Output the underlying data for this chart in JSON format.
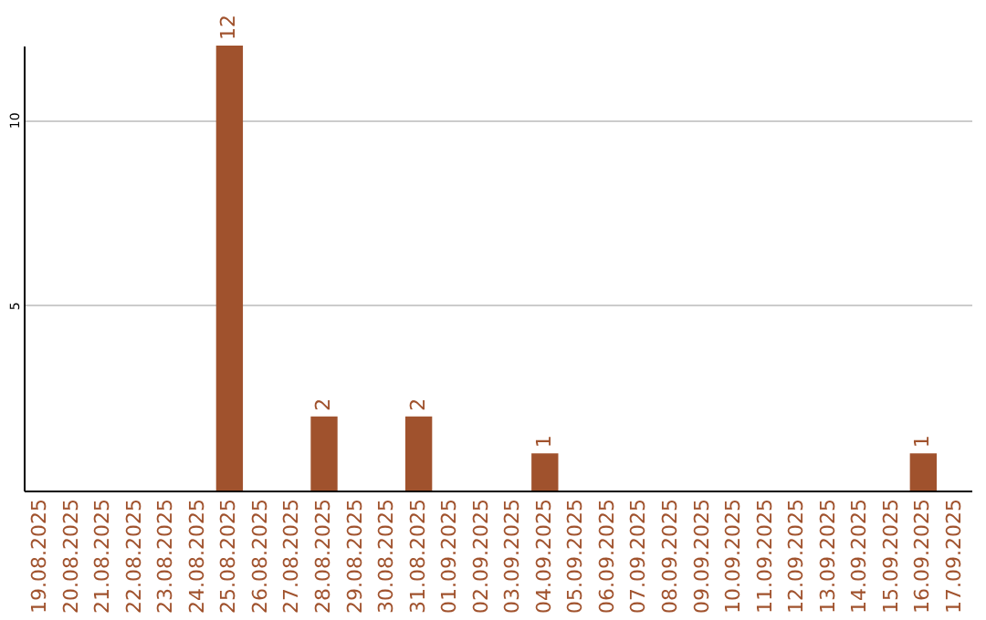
{
  "chart_data": {
    "type": "bar",
    "categories": [
      "19.08.2025",
      "20.08.2025",
      "21.08.2025",
      "22.08.2025",
      "23.08.2025",
      "24.08.2025",
      "25.08.2025",
      "26.08.2025",
      "27.08.2025",
      "28.08.2025",
      "29.08.2025",
      "30.08.2025",
      "31.08.2025",
      "01.09.2025",
      "02.09.2025",
      "03.09.2025",
      "04.09.2025",
      "05.09.2025",
      "06.09.2025",
      "07.09.2025",
      "08.09.2025",
      "09.09.2025",
      "10.09.2025",
      "11.09.2025",
      "12.09.2025",
      "13.09.2025",
      "14.09.2025",
      "15.09.2025",
      "16.09.2025",
      "17.09.2025"
    ],
    "values": [
      0,
      0,
      0,
      0,
      0,
      0,
      12,
      0,
      0,
      2,
      0,
      0,
      2,
      0,
      0,
      0,
      1,
      0,
      0,
      0,
      0,
      0,
      0,
      0,
      0,
      0,
      0,
      0,
      1,
      0
    ],
    "value_labels": [
      null,
      null,
      null,
      null,
      null,
      null,
      "12",
      null,
      null,
      "2",
      null,
      null,
      "2",
      null,
      null,
      null,
      "1",
      null,
      null,
      null,
      null,
      null,
      null,
      null,
      null,
      null,
      null,
      null,
      "1",
      null
    ],
    "color": "#a0522d",
    "ylim": [
      0,
      12
    ],
    "yticks": [
      5,
      10
    ],
    "grid": "y"
  }
}
